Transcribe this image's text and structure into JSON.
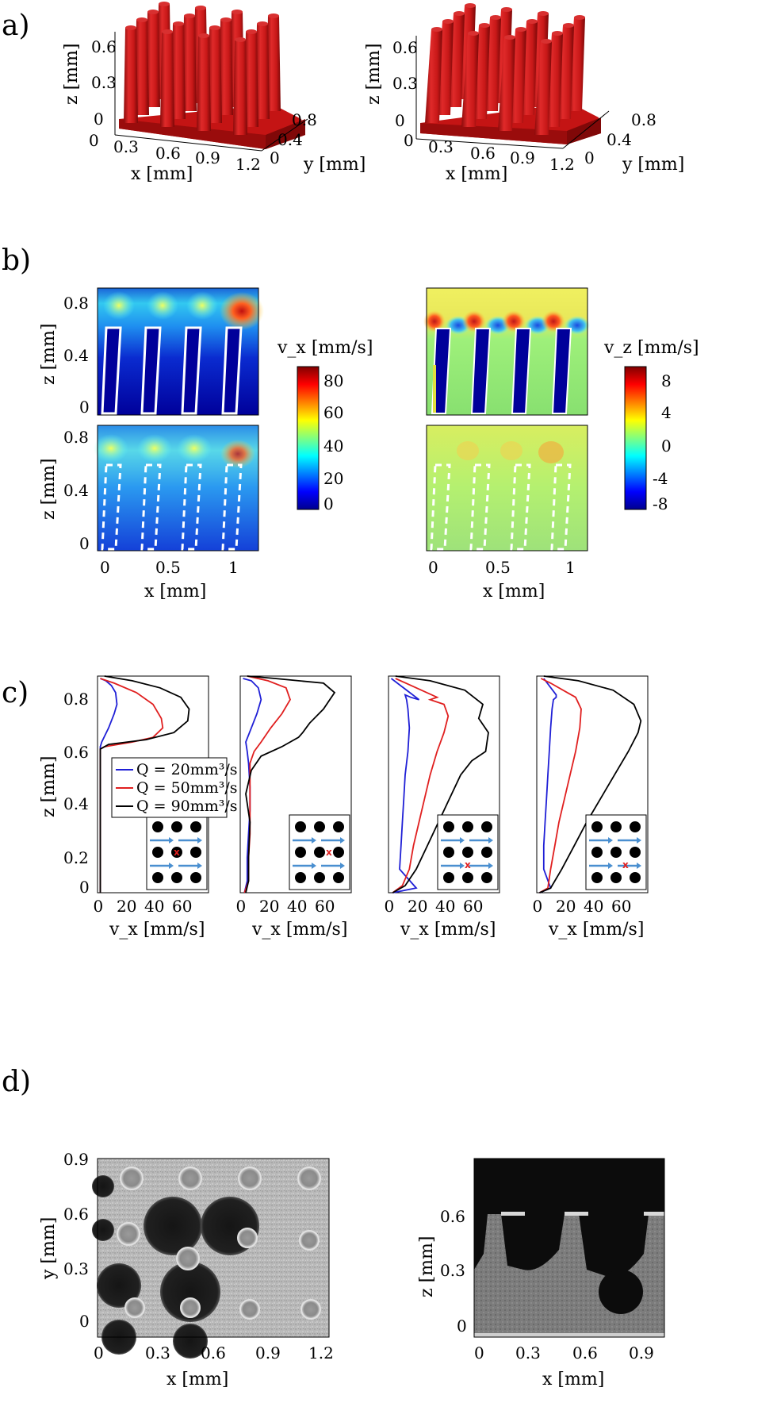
{
  "panels": {
    "a": {
      "label": "a)"
    },
    "b": {
      "label": "b)"
    },
    "c": {
      "label": "c)"
    },
    "d": {
      "label": "d)"
    }
  },
  "axes": {
    "x_mm": "x [mm]",
    "y_mm": "y [mm]",
    "z_mm": "z [mm]",
    "vx_mms": "v_x [mm/s]",
    "vz_mms": "v_z [mm/s]"
  },
  "colors": {
    "pillar_red": "#cc1a1a",
    "jet_low": "#00008f",
    "jet_high": "#800000",
    "series_20": "#1f1fd6",
    "series_50": "#e01f1f",
    "series_90": "#000000",
    "inset_arrow": "#4a8fd0",
    "inset_marker": "#e01f1f"
  },
  "a": {
    "left": {
      "z_ticks": [
        "0",
        "0.3",
        "0.6"
      ],
      "x_ticks": [
        "0",
        "0.3",
        "0.6",
        "0.9",
        "1.2"
      ],
      "y_ticks": [
        "0",
        "0.4",
        "0.8"
      ]
    },
    "right": {
      "z_ticks": [
        "0",
        "0.3",
        "0.6"
      ],
      "x_ticks": [
        "0",
        "0.3",
        "0.6",
        "0.9",
        "1.2"
      ],
      "y_ticks": [
        "0",
        "0.4",
        "0.8"
      ]
    }
  },
  "b": {
    "z_ticks": [
      "0",
      "0.4",
      "0.8"
    ],
    "x_ticks": [
      "0",
      "0.5",
      "1"
    ],
    "vx_colorbar": {
      "ticks": [
        "80",
        "60",
        "40",
        "20",
        "0"
      ],
      "range": [
        0,
        85
      ]
    },
    "vz_colorbar": {
      "ticks": [
        "8",
        "4",
        "0",
        "-4",
        "-8"
      ],
      "range": [
        -8,
        8
      ]
    }
  },
  "c": {
    "z_ticks": [
      "0",
      "0.2",
      "0.4",
      "0.6",
      "0.8"
    ],
    "legend": [
      "Q = 20mm³/s",
      "Q = 50mm³/s",
      "Q = 90mm³/s"
    ],
    "inset_marker": "x",
    "subplots": [
      {
        "x_ticks": [
          "0",
          "20",
          "40",
          "60"
        ]
      },
      {
        "x_ticks": [
          "0",
          "20",
          "40",
          "60"
        ]
      },
      {
        "x_ticks": [
          "0",
          "20",
          "40",
          "60"
        ]
      },
      {
        "x_ticks": [
          "0",
          "20",
          "40",
          "60"
        ]
      }
    ]
  },
  "chart_data": [
    {
      "type": "line",
      "panel": "c1",
      "xlabel": "v_x [mm/s]",
      "ylabel": "z [mm]",
      "xlim": [
        0,
        80
      ],
      "ylim": [
        0,
        0.92
      ],
      "series": [
        {
          "name": "Q = 20mm³/s",
          "x": [
            2,
            2,
            3,
            8,
            12,
            14,
            13,
            10,
            6,
            2
          ],
          "y": [
            0.0,
            0.62,
            0.64,
            0.7,
            0.76,
            0.8,
            0.85,
            0.88,
            0.9,
            0.91
          ]
        },
        {
          "name": "Q = 50mm³/s",
          "x": [
            2,
            2,
            5,
            25,
            40,
            47,
            46,
            40,
            28,
            12,
            2
          ],
          "y": [
            0.0,
            0.61,
            0.62,
            0.64,
            0.66,
            0.7,
            0.74,
            0.8,
            0.85,
            0.89,
            0.91
          ]
        },
        {
          "name": "Q = 90mm³/s",
          "x": [
            2,
            2,
            8,
            35,
            55,
            65,
            66,
            60,
            45,
            25,
            5
          ],
          "y": [
            0.0,
            0.61,
            0.63,
            0.65,
            0.68,
            0.73,
            0.78,
            0.83,
            0.87,
            0.9,
            0.92
          ]
        }
      ]
    },
    {
      "type": "line",
      "panel": "c2",
      "xlabel": "v_x [mm/s]",
      "xlim": [
        0,
        80
      ],
      "ylim": [
        0,
        0.92
      ],
      "series": [
        {
          "name": "Q = 20mm³/s",
          "x": [
            3,
            5,
            5,
            6,
            7,
            7,
            6,
            5,
            4,
            8,
            12,
            15,
            13,
            8,
            2
          ],
          "y": [
            0.0,
            0.05,
            0.15,
            0.25,
            0.35,
            0.45,
            0.55,
            0.6,
            0.64,
            0.7,
            0.76,
            0.82,
            0.87,
            0.9,
            0.91
          ]
        },
        {
          "name": "Q = 50mm³/s",
          "x": [
            3,
            6,
            6,
            7,
            7,
            7,
            7,
            10,
            15,
            22,
            30,
            36,
            33,
            20,
            5
          ],
          "y": [
            0.0,
            0.05,
            0.15,
            0.25,
            0.35,
            0.45,
            0.55,
            0.6,
            0.64,
            0.7,
            0.76,
            0.82,
            0.87,
            0.9,
            0.92
          ]
        },
        {
          "name": "Q = 90mm³/s",
          "x": [
            4,
            6,
            6,
            7,
            4,
            8,
            15,
            30,
            42,
            45,
            50,
            60,
            68,
            60,
            25,
            5
          ],
          "y": [
            0.0,
            0.05,
            0.15,
            0.3,
            0.42,
            0.52,
            0.58,
            0.62,
            0.66,
            0.68,
            0.72,
            0.78,
            0.85,
            0.89,
            0.91,
            0.92
          ]
        }
      ]
    },
    {
      "type": "line",
      "panel": "c3",
      "xlabel": "v_x [mm/s]",
      "xlim": [
        0,
        80
      ],
      "ylim": [
        0,
        0.92
      ],
      "series": [
        {
          "name": "Q = 20mm³/s",
          "x": [
            3,
            20,
            8,
            9,
            10,
            11,
            12,
            14,
            15,
            14,
            13,
            12,
            16,
            22,
            2
          ],
          "y": [
            0.0,
            0.02,
            0.1,
            0.2,
            0.3,
            0.4,
            0.5,
            0.6,
            0.7,
            0.78,
            0.82,
            0.84,
            0.83,
            0.82,
            0.91
          ]
        },
        {
          "name": "Q = 50mm³/s",
          "x": [
            3,
            10,
            15,
            18,
            22,
            26,
            30,
            35,
            40,
            43,
            40,
            30,
            35,
            5
          ],
          "y": [
            0.0,
            0.03,
            0.1,
            0.2,
            0.3,
            0.4,
            0.5,
            0.6,
            0.68,
            0.75,
            0.8,
            0.82,
            0.83,
            0.91
          ]
        },
        {
          "name": "Q = 90mm³/s",
          "x": [
            3,
            12,
            20,
            28,
            36,
            44,
            52,
            60,
            70,
            72,
            65,
            68,
            55,
            30,
            5
          ],
          "y": [
            0.0,
            0.03,
            0.1,
            0.2,
            0.3,
            0.4,
            0.5,
            0.56,
            0.6,
            0.68,
            0.74,
            0.8,
            0.86,
            0.9,
            0.92
          ]
        }
      ]
    },
    {
      "type": "line",
      "panel": "c4",
      "xlabel": "v_x [mm/s]",
      "xlim": [
        0,
        80
      ],
      "ylim": [
        0,
        0.92
      ],
      "series": [
        {
          "name": "Q = 20mm³/s",
          "x": [
            2,
            10,
            5,
            5,
            6,
            7,
            8,
            9,
            10,
            11,
            12,
            14,
            14,
            5
          ],
          "y": [
            0.0,
            0.02,
            0.1,
            0.2,
            0.3,
            0.4,
            0.5,
            0.6,
            0.7,
            0.78,
            0.82,
            0.83,
            0.84,
            0.91
          ]
        },
        {
          "name": "Q = 50mm³/s",
          "x": [
            2,
            8,
            10,
            13,
            16,
            20,
            24,
            28,
            31,
            32,
            28,
            22,
            10,
            3
          ],
          "y": [
            0.0,
            0.02,
            0.1,
            0.2,
            0.3,
            0.4,
            0.5,
            0.6,
            0.7,
            0.78,
            0.83,
            0.85,
            0.89,
            0.91
          ]
        },
        {
          "name": "Q = 90mm³/s",
          "x": [
            2,
            10,
            18,
            27,
            36,
            46,
            56,
            66,
            73,
            75,
            70,
            55,
            30,
            5
          ],
          "y": [
            0.0,
            0.02,
            0.1,
            0.2,
            0.3,
            0.4,
            0.5,
            0.6,
            0.68,
            0.73,
            0.8,
            0.86,
            0.9,
            0.92
          ]
        }
      ]
    }
  ],
  "d": {
    "left": {
      "y_ticks": [
        "0.9",
        "0.6",
        "0.3",
        "0"
      ],
      "x_ticks": [
        "0",
        "0.3",
        "0.6",
        "0.9",
        "1.2"
      ]
    },
    "right": {
      "z_ticks": [
        "0.6",
        "0.3",
        "0"
      ],
      "x_ticks": [
        "0",
        "0.3",
        "0.6",
        "0.9"
      ]
    }
  }
}
